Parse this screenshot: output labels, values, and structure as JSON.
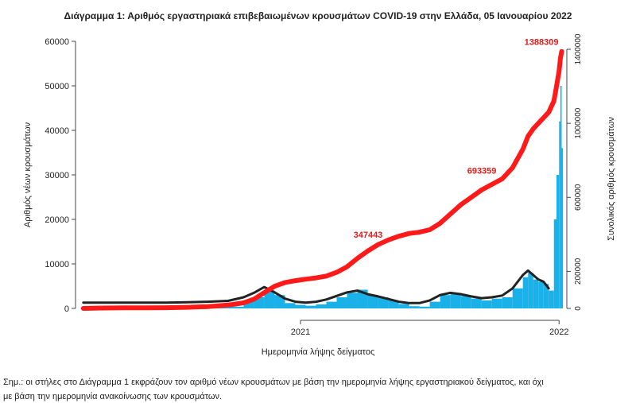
{
  "chart_data": {
    "type": "combo",
    "title": "Διάγραμμα 1: Αριθμός εργαστηριακά επιβεβαιωμένων κρουσμάτων COVID-19 στην Ελλάδα, 05 Ιανουαρίου 2022",
    "x_label": "Ημερομηνία λήψης δείγματος",
    "y_label": "Αριθμός νέων κρουσμάτων",
    "y2_label": "Συνολικός αριθμός κρουσμάτων",
    "note": [
      "Σημ.: οι στήλες στο Διάγραμμα 1 εκφράζουν τον αριθμό νέων κρουσμάτων με βάση την ημερομηνία λήψης εργαστηριακού δείγματος, και όχι",
      "με βάση την ημερομηνία ανακοίνωσης των κρουσμάτων."
    ],
    "x": [
      2020.16,
      2020.24,
      2020.32,
      2020.4,
      2020.48,
      2020.56,
      2020.64,
      2020.72,
      2020.78,
      2020.82,
      2020.86,
      2020.9,
      2020.94,
      2020.98,
      2021.02,
      2021.06,
      2021.1,
      2021.14,
      2021.18,
      2021.22,
      2021.26,
      2021.3,
      2021.34,
      2021.38,
      2021.42,
      2021.46,
      2021.5,
      2021.54,
      2021.58,
      2021.62,
      2021.66,
      2021.7,
      2021.74,
      2021.78,
      2021.82,
      2021.86,
      2021.88,
      2021.9,
      2021.92,
      2021.94,
      2021.96,
      2021.98,
      2021.99,
      2022.0,
      2022.005,
      2022.01
    ],
    "xlim": [
      2020.13,
      2022.03
    ],
    "xticks": [
      2021,
      2022
    ],
    "ylim": [
      0,
      60000
    ],
    "yticks": [
      0,
      10000,
      20000,
      30000,
      40000,
      50000,
      60000
    ],
    "y2lim": [
      0,
      1400000
    ],
    "y2ticks": [
      0,
      200000,
      600000,
      1000000,
      1400000
    ],
    "series": [
      {
        "type": "bar",
        "color": "#1ab0e8",
        "values": [
          50,
          80,
          20,
          15,
          30,
          150,
          250,
          400,
          1500,
          2500,
          4000,
          3000,
          1200,
          800,
          600,
          900,
          1500,
          2500,
          3500,
          4200,
          3000,
          2500,
          1800,
          1000,
          500,
          400,
          1500,
          3000,
          3500,
          2800,
          2200,
          1800,
          2200,
          2500,
          4500,
          7000,
          8000,
          6500,
          6000,
          5500,
          4000,
          20000,
          30000,
          42000,
          50000,
          36000
        ]
      },
      {
        "type": "line",
        "color": "#222222",
        "values": [
          1300,
          1300,
          1300,
          1300,
          1300,
          1400,
          1500,
          1700,
          2500,
          3500,
          4800,
          3600,
          2200,
          1500,
          1300,
          1500,
          2000,
          2800,
          3600,
          4000,
          3200,
          2700,
          2100,
          1500,
          1200,
          1200,
          1800,
          3000,
          3500,
          3200,
          2700,
          2300,
          2500,
          2900,
          4500,
          7500,
          8500,
          7500,
          6500,
          6000,
          4500,
          null,
          null,
          null,
          null,
          null
        ]
      },
      {
        "type": "line",
        "color": "#ff1a1a",
        "axis": "y2",
        "values": [
          100,
          2000,
          3000,
          3500,
          4000,
          6000,
          10000,
          18000,
          30000,
          50000,
          85000,
          120000,
          140000,
          150000,
          158000,
          165000,
          175000,
          195000,
          225000,
          270000,
          310000,
          345000,
          370000,
          390000,
          405000,
          412000,
          425000,
          460000,
          510000,
          560000,
          600000,
          640000,
          670000,
          700000,
          760000,
          860000,
          930000,
          970000,
          1000000,
          1030000,
          1060000,
          1120000,
          1200000,
          1280000,
          1350000,
          1388309
        ]
      }
    ],
    "annotations": [
      {
        "text": "347443",
        "x": 2021.33,
        "value": 347443
      },
      {
        "text": "693359",
        "x": 2021.77,
        "value": 693359
      },
      {
        "text": "1388309",
        "x": 2022.01,
        "value": 1388309
      }
    ]
  }
}
